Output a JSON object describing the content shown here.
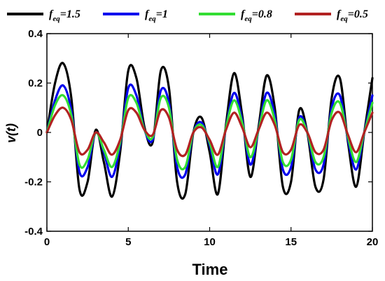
{
  "chart_data": {
    "type": "line",
    "title": "",
    "xlabel": "Time",
    "ylabel": "v(t)",
    "xlim": [
      0,
      20
    ],
    "ylim": [
      -0.4,
      0.4
    ],
    "xticks": [
      "0",
      "5",
      "10",
      "15",
      "20"
    ],
    "yticks": [
      "0.4",
      "0.2",
      "0",
      "-0.2",
      "-0.4"
    ],
    "grid": false,
    "legend_position": "top",
    "x": [
      0,
      0.5,
      1,
      1.5,
      2,
      2.5,
      3,
      3.5,
      4,
      4.5,
      5,
      5.5,
      6,
      6.5,
      7,
      7.5,
      8,
      8.5,
      9,
      9.5,
      10,
      10.5,
      11,
      11.5,
      12,
      12.5,
      13,
      13.5,
      14,
      14.5,
      15,
      15.5,
      16,
      16.5,
      17,
      17.5,
      18,
      18.5,
      19,
      19.5,
      20
    ],
    "series": [
      {
        "name_prefix": "f",
        "name_sub": "eq",
        "name_value": "=1.5",
        "color": "#000000",
        "values": [
          0.0,
          0.2,
          0.28,
          0.14,
          -0.23,
          -0.2,
          0.01,
          -0.12,
          -0.26,
          -0.08,
          0.25,
          0.22,
          0.02,
          -0.04,
          0.25,
          0.18,
          -0.2,
          -0.25,
          0.0,
          0.06,
          -0.08,
          -0.25,
          0.03,
          0.24,
          0.07,
          -0.18,
          0.02,
          0.23,
          0.1,
          -0.22,
          -0.2,
          0.09,
          0.0,
          -0.22,
          -0.19,
          0.14,
          0.22,
          -0.04,
          -0.22,
          0.0,
          0.22
        ]
      },
      {
        "name_prefix": "f",
        "name_sub": "eq",
        "name_value": "=1",
        "color": "#0000ee",
        "values": [
          0.0,
          0.13,
          0.19,
          0.09,
          -0.16,
          -0.14,
          0.0,
          -0.08,
          -0.18,
          -0.05,
          0.18,
          0.15,
          0.01,
          -0.03,
          0.17,
          0.12,
          -0.14,
          -0.17,
          0.0,
          0.04,
          -0.05,
          -0.17,
          0.02,
          0.16,
          0.05,
          -0.13,
          0.01,
          0.16,
          0.07,
          -0.15,
          -0.14,
          0.06,
          0.0,
          -0.15,
          -0.13,
          0.1,
          0.15,
          -0.03,
          -0.15,
          0.0,
          0.15
        ]
      },
      {
        "name_prefix": "f",
        "name_sub": "eq",
        "name_value": "=0.8",
        "color": "#33dd33",
        "values": [
          0.0,
          0.11,
          0.15,
          0.07,
          -0.13,
          -0.11,
          0.0,
          -0.07,
          -0.14,
          -0.04,
          0.14,
          0.12,
          0.01,
          -0.02,
          0.14,
          0.1,
          -0.11,
          -0.14,
          0.0,
          0.03,
          -0.04,
          -0.14,
          0.02,
          0.13,
          0.04,
          -0.1,
          0.01,
          0.13,
          0.05,
          -0.12,
          -0.11,
          0.05,
          0.0,
          -0.12,
          -0.1,
          0.08,
          0.12,
          -0.02,
          -0.12,
          0.0,
          0.12
        ]
      },
      {
        "name_prefix": "f",
        "name_sub": "eq",
        "name_value": "=0.5",
        "color": "#b22222",
        "values": [
          0.0,
          0.07,
          0.1,
          0.05,
          -0.08,
          -0.07,
          0.0,
          -0.04,
          -0.09,
          -0.03,
          0.09,
          0.08,
          0.01,
          -0.01,
          0.09,
          0.06,
          -0.07,
          -0.09,
          0.0,
          0.02,
          -0.03,
          -0.09,
          0.01,
          0.08,
          0.02,
          -0.06,
          0.01,
          0.08,
          0.03,
          -0.08,
          -0.07,
          0.03,
          0.0,
          -0.08,
          -0.07,
          0.05,
          0.08,
          -0.01,
          -0.08,
          0.0,
          0.08
        ]
      }
    ]
  }
}
